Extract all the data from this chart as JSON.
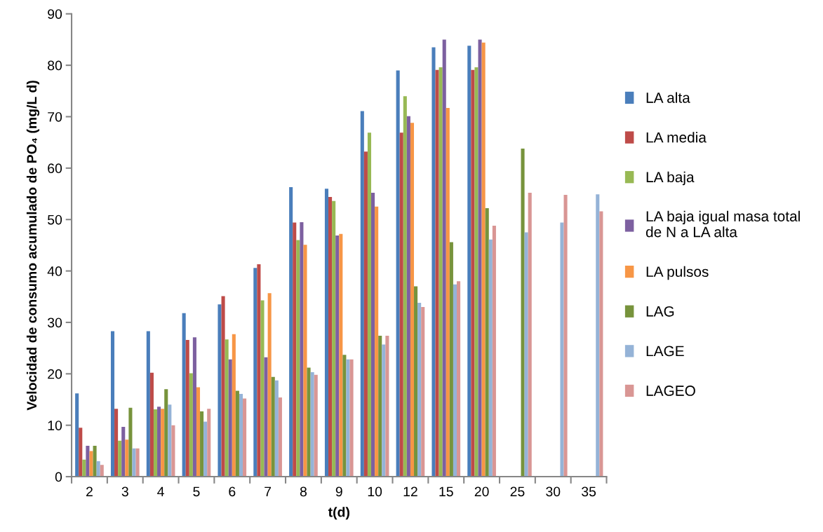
{
  "chart_data": {
    "type": "bar",
    "xlabel": "t(d)",
    "ylabel": "Velocidad de consumo acumulado de PO₄ (mg/L d)",
    "categories": [
      "2",
      "3",
      "4",
      "5",
      "6",
      "7",
      "8",
      "9",
      "10",
      "12",
      "15",
      "20",
      "25",
      "30",
      "35"
    ],
    "ylim": [
      0,
      90
    ],
    "yticks": [
      0,
      10,
      20,
      30,
      40,
      50,
      60,
      70,
      80,
      90
    ],
    "grid": false,
    "legend": "right",
    "series": [
      {
        "name": "LA alta",
        "color": "#4a7ebb",
        "values": [
          16.2,
          28.3,
          28.3,
          31.8,
          33.5,
          40.6,
          56.3,
          56.0,
          71.1,
          79.0,
          83.5,
          83.8,
          null,
          null,
          null
        ]
      },
      {
        "name": "LA media",
        "color": "#be4b48",
        "values": [
          9.5,
          13.2,
          20.2,
          26.6,
          35.1,
          41.3,
          49.4,
          54.4,
          63.2,
          66.9,
          79.1,
          79.1,
          null,
          null,
          null
        ]
      },
      {
        "name": "LA baja",
        "color": "#98b954",
        "values": [
          3.3,
          7.0,
          13.1,
          20.1,
          26.7,
          34.3,
          46.0,
          53.6,
          66.9,
          74.0,
          79.6,
          79.6,
          null,
          null,
          null
        ]
      },
      {
        "name": "LA baja igual masa total\nde N a LA alta",
        "color": "#7d60a0",
        "values": [
          6.0,
          9.7,
          13.6,
          27.1,
          22.8,
          23.2,
          49.5,
          46.9,
          55.2,
          70.1,
          85.0,
          85.0,
          null,
          null,
          null
        ]
      },
      {
        "name": "LA pulsos",
        "color": "#f79646",
        "values": [
          5.0,
          7.2,
          13.2,
          17.4,
          27.7,
          35.7,
          45.1,
          47.2,
          52.5,
          68.8,
          71.7,
          84.4,
          null,
          null,
          null
        ]
      },
      {
        "name": "LAG",
        "color": "#77933c",
        "values": [
          6.0,
          13.4,
          17.0,
          12.7,
          16.7,
          19.4,
          21.2,
          23.7,
          27.4,
          37.0,
          45.6,
          52.2,
          63.8,
          null,
          null
        ]
      },
      {
        "name": "LAGE",
        "color": "#95b3d7",
        "values": [
          3.0,
          5.5,
          14.0,
          10.7,
          16.1,
          18.7,
          20.3,
          22.8,
          25.7,
          33.8,
          37.4,
          46.1,
          47.5,
          49.4,
          54.9
        ]
      },
      {
        "name": "LAGEO",
        "color": "#d99694",
        "values": [
          2.3,
          5.5,
          10.0,
          13.2,
          15.2,
          15.4,
          19.8,
          22.8,
          27.4,
          33.0,
          38.0,
          48.8,
          55.2,
          54.8,
          51.6
        ]
      }
    ]
  }
}
